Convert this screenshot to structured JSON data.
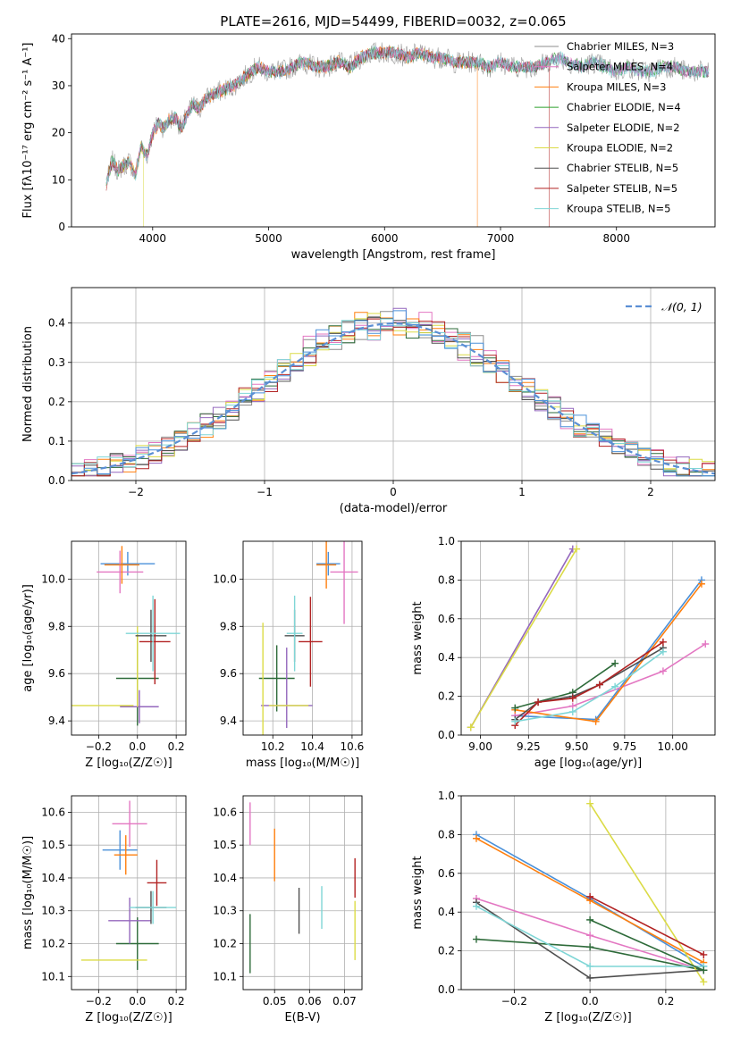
{
  "figure": {
    "title": "PLATE=2616, MJD=54499, FIBERID=0032, z=0.065"
  },
  "colors": {
    "Chabrier MILES": "#8c8c8c",
    "Salpeter MILES": "#e377c2",
    "Kroupa MILES": "#ff7f0e",
    "Chabrier ELODIE": "#2ca02c",
    "Salpeter ELODIE": "#9467bd",
    "Kroupa ELODIE": "#dbdb46",
    "Chabrier STELIB": "#4f4f4f",
    "Salpeter STELIB": "#b22222",
    "Kroupa STELIB": "#7fd6d6",
    "Chabrier MILES dark": "#4a90d9",
    "Chabrier ELODIE dark": "#2e6b3a",
    "gaussian": "#5b8fd4"
  },
  "chart_data": [
    {
      "id": "spectrum",
      "type": "line",
      "title": "PLATE=2616, MJD=54499, FIBERID=0032, z=0.065",
      "xlabel": "wavelength [Angstrom, rest frame]",
      "ylabel": "Flux [fλ10⁻¹⁷ erg cm⁻² s⁻¹ A⁻¹]",
      "xlim": [
        3300,
        8850
      ],
      "ylim": [
        0,
        41
      ],
      "xticks": [
        "4000",
        "5000",
        "6000",
        "7000",
        "8000"
      ],
      "yticks": [
        "0",
        "10",
        "20",
        "30",
        "40"
      ],
      "grid": false,
      "legend_position": "top-right",
      "legend": [
        "Chabrier MILES, N_SSP=3",
        "Salpeter MILES, N_SSP=4",
        "Kroupa MILES, N_SSP=3",
        "Chabrier ELODIE, N_SSP=4",
        "Salpeter ELODIE, N_SSP=2",
        "Kroupa ELODIE, N_SSP=2",
        "Chabrier STELIB, N_SSP=5",
        "Salpeter STELIB, N_SSP=5",
        "Kroupa STELIB, N_SSP=5"
      ],
      "legend_colors": [
        "#8c8c8c",
        "#e377c2",
        "#ff7f0e",
        "#2ca02c",
        "#9467bd",
        "#dbdb46",
        "#4f4f4f",
        "#b22222",
        "#7fd6d6"
      ],
      "envelope_x": [
        3600,
        3650,
        3700,
        3750,
        3800,
        3850,
        3900,
        3950,
        4000,
        4050,
        4100,
        4150,
        4200,
        4250,
        4300,
        4350,
        4400,
        4450,
        4500,
        4600,
        4700,
        4800,
        4900,
        5000,
        5100,
        5200,
        5300,
        5400,
        5500,
        5600,
        5700,
        5800,
        5900,
        6000,
        6100,
        6200,
        6300,
        6400,
        6500,
        6600,
        6700,
        6800,
        6900,
        7000,
        7100,
        7200,
        7300,
        7400,
        7500,
        7600,
        7700,
        7800,
        7900,
        8000,
        8100,
        8200,
        8300,
        8400,
        8500,
        8600,
        8700,
        8800
      ],
      "envelope_y": [
        9,
        14,
        12,
        13,
        14,
        11,
        17,
        15,
        20,
        22,
        21,
        23,
        23,
        21,
        24,
        26,
        25,
        27,
        28,
        29,
        30,
        32,
        34,
        33,
        33,
        34,
        35,
        34,
        34,
        35,
        34,
        36,
        37,
        37,
        37,
        36,
        37,
        36,
        36,
        35,
        35,
        35,
        34,
        35,
        34,
        34,
        34,
        35,
        36,
        35,
        34,
        35,
        34,
        33,
        34,
        33,
        33,
        34,
        34,
        33,
        33,
        33
      ],
      "drops": [
        {
          "series": "Kroupa ELODIE",
          "x": 3920
        },
        {
          "series": "Kroupa MILES",
          "x": 6800
        },
        {
          "series": "Salpeter STELIB",
          "x": 7420
        }
      ]
    },
    {
      "id": "residuals",
      "type": "histogram",
      "xlabel": "(data-model)/error",
      "ylabel": "Normed distribution",
      "xlim": [
        -2.5,
        2.5
      ],
      "ylim": [
        0,
        0.49
      ],
      "xticks": [
        "−2",
        "−1",
        "0",
        "1",
        "2"
      ],
      "yticks": [
        "0.0",
        "0.1",
        "0.2",
        "0.3",
        "0.4"
      ],
      "grid": true,
      "legend_position": "top-right",
      "legend": [
        "𝒩(0, 1)"
      ],
      "bin_width": 0.1,
      "gaussian_sigma": 1.0
    },
    {
      "id": "z-age",
      "type": "scatter",
      "xlabel": "Z [log₁₀(Z/Z☉)]",
      "ylabel": "age  [log₁₀(age/yr)]",
      "xlim": [
        -0.34,
        0.25
      ],
      "ylim": [
        9.34,
        10.16
      ],
      "xticks": [
        "−0.2",
        "0.0",
        "0.2"
      ],
      "yticks": [
        "9.4",
        "9.6",
        "9.8",
        "10.0"
      ],
      "grid": true,
      "points": [
        {
          "series": "Chabrier MILES dark",
          "x": -0.05,
          "y": 10.065,
          "xerr": 0.14,
          "yerr": 0.05
        },
        {
          "series": "Salpeter MILES",
          "x": -0.09,
          "y": 10.03,
          "xerr": 0.12,
          "yerr": 0.09
        },
        {
          "series": "Kroupa MILES",
          "x": -0.08,
          "y": 10.06,
          "xerr": 0.09,
          "yerr": 0.08
        },
        {
          "series": "Chabrier ELODIE dark",
          "x": 0.0,
          "y": 9.58,
          "xerr": 0.11,
          "yerr": 0.2
        },
        {
          "series": "Salpeter ELODIE",
          "x": 0.01,
          "y": 9.46,
          "xerr": 0.1,
          "yerr": 0.07
        },
        {
          "series": "Kroupa ELODIE",
          "x": -0.3,
          "y": 9.465,
          "xerr": 0.28,
          "yerr": 0.0
        },
        {
          "series": "Kroupa ELODIE",
          "x": 0.0,
          "y": 9.63,
          "xerr": 0.0,
          "yerr": 0.17
        },
        {
          "series": "Chabrier STELIB",
          "x": 0.07,
          "y": 9.76,
          "xerr": 0.08,
          "yerr": 0.11
        },
        {
          "series": "Salpeter STELIB",
          "x": 0.09,
          "y": 9.735,
          "xerr": 0.08,
          "yerr": 0.18
        },
        {
          "series": "Kroupa STELIB",
          "x": 0.08,
          "y": 9.77,
          "xerr": 0.14,
          "yerr": 0.16
        }
      ]
    },
    {
      "id": "mass-age",
      "type": "scatter",
      "xlabel": "mass [log₁₀(M/M☉)]",
      "ylabel": "",
      "xlim": [
        10.05,
        10.65
      ],
      "ylim": [
        9.34,
        10.16
      ],
      "xticks": [
        "10.2",
        "10.4",
        "10.6"
      ],
      "yticks": [
        "9.4",
        "9.6",
        "9.8",
        "10.0"
      ],
      "grid": true,
      "points": [
        {
          "series": "Chabrier MILES dark",
          "x": 10.48,
          "y": 10.065,
          "xerr": 0.06,
          "yerr": 0.05
        },
        {
          "series": "Salpeter MILES",
          "x": 10.56,
          "y": 10.03,
          "xerr": 0.07,
          "yerr": 0.22
        },
        {
          "series": "Kroupa MILES",
          "x": 10.47,
          "y": 10.06,
          "xerr": 0.05,
          "yerr": 0.1
        },
        {
          "series": "Chabrier ELODIE dark",
          "x": 10.22,
          "y": 9.58,
          "xerr": 0.09,
          "yerr": 0.14
        },
        {
          "series": "Salpeter ELODIE",
          "x": 10.27,
          "y": 9.465,
          "xerr": 0.13,
          "yerr": 0.0
        },
        {
          "series": "Salpeter ELODIE",
          "x": 10.27,
          "y": 9.54,
          "xerr": 0.0,
          "yerr": 0.17
        },
        {
          "series": "Kroupa ELODIE",
          "x": 10.15,
          "y": 9.465,
          "xerr": 0.0,
          "yerr": 0.35
        },
        {
          "series": "Kroupa ELODIE",
          "x": 10.28,
          "y": 9.465,
          "xerr": 0.1,
          "yerr": 0.0
        },
        {
          "series": "Chabrier STELIB",
          "x": 10.31,
          "y": 9.76,
          "xerr": 0.05,
          "yerr": 0.11
        },
        {
          "series": "Salpeter STELIB",
          "x": 10.39,
          "y": 9.735,
          "xerr": 0.06,
          "yerr": 0.19
        },
        {
          "series": "Kroupa STELIB",
          "x": 10.31,
          "y": 9.77,
          "xerr": 0.04,
          "yerr": 0.16
        }
      ]
    },
    {
      "id": "age-weight",
      "type": "line",
      "xlabel": "age  [log₁₀(age/yr)]",
      "ylabel": "mass weight",
      "xlim": [
        8.9,
        10.22
      ],
      "ylim": [
        0,
        1.0
      ],
      "xticks": [
        "9.00",
        "9.25",
        "9.50",
        "9.75",
        "10.00"
      ],
      "yticks": [
        "0.0",
        "0.2",
        "0.4",
        "0.6",
        "0.8",
        "1.0"
      ],
      "grid": true,
      "series": [
        {
          "name": "Chabrier MILES",
          "color": "#4a90d9",
          "x": [
            9.18,
            9.6,
            10.15
          ],
          "y": [
            0.1,
            0.08,
            0.8
          ]
        },
        {
          "name": "Salpeter MILES",
          "color": "#e377c2",
          "x": [
            9.18,
            9.48,
            9.95,
            10.17
          ],
          "y": [
            0.1,
            0.15,
            0.33,
            0.47
          ]
        },
        {
          "name": "Kroupa MILES",
          "color": "#ff7f0e",
          "x": [
            9.18,
            9.6,
            10.15
          ],
          "y": [
            0.13,
            0.07,
            0.78
          ]
        },
        {
          "name": "Chabrier ELODIE",
          "color": "#2e6b3a",
          "x": [
            9.18,
            9.48,
            9.7
          ],
          "y": [
            0.14,
            0.22,
            0.37
          ]
        },
        {
          "name": "Salpeter ELODIE",
          "color": "#9467bd",
          "x": [
            8.95,
            9.48
          ],
          "y": [
            0.04,
            0.96
          ]
        },
        {
          "name": "Kroupa ELODIE",
          "color": "#dbdb46",
          "x": [
            8.95,
            9.5
          ],
          "y": [
            0.04,
            0.96
          ]
        },
        {
          "name": "Chabrier STELIB",
          "color": "#4f4f4f",
          "x": [
            9.18,
            9.3,
            9.48,
            9.62,
            9.95
          ],
          "y": [
            0.08,
            0.17,
            0.2,
            0.26,
            0.45
          ]
        },
        {
          "name": "Salpeter STELIB",
          "color": "#b22222",
          "x": [
            9.18,
            9.3,
            9.48,
            9.62,
            9.95
          ],
          "y": [
            0.05,
            0.17,
            0.19,
            0.26,
            0.48
          ]
        },
        {
          "name": "Kroupa STELIB",
          "color": "#7fd6d6",
          "x": [
            9.18,
            9.48,
            9.7,
            9.95
          ],
          "y": [
            0.07,
            0.12,
            0.25,
            0.43
          ]
        }
      ]
    },
    {
      "id": "z-mass",
      "type": "scatter",
      "xlabel": "Z [log₁₀(Z/Z☉)]",
      "ylabel": "mass [log₁₀(M/M☉)]",
      "xlim": [
        -0.34,
        0.25
      ],
      "ylim": [
        10.06,
        10.65
      ],
      "xticks": [
        "−0.2",
        "0.0",
        "0.2"
      ],
      "yticks": [
        "10.1",
        "10.2",
        "10.3",
        "10.4",
        "10.5",
        "10.6"
      ],
      "grid": true,
      "points": [
        {
          "series": "Chabrier MILES dark",
          "x": -0.09,
          "y": 10.485,
          "xerr": 0.09,
          "yerr": 0.06
        },
        {
          "series": "Salpeter MILES",
          "x": -0.04,
          "y": 10.565,
          "xerr": 0.09,
          "yerr": 0.07
        },
        {
          "series": "Kroupa MILES",
          "x": -0.06,
          "y": 10.47,
          "xerr": 0.06,
          "yerr": 0.06
        },
        {
          "series": "Chabrier ELODIE dark",
          "x": 0.0,
          "y": 10.2,
          "xerr": 0.11,
          "yerr": 0.08
        },
        {
          "series": "Salpeter ELODIE",
          "x": -0.04,
          "y": 10.27,
          "xerr": 0.11,
          "yerr": 0.07
        },
        {
          "series": "Kroupa ELODIE",
          "x": -0.12,
          "y": 10.15,
          "xerr": 0.17,
          "yerr": 0.0
        },
        {
          "series": "Chabrier STELIB",
          "x": 0.07,
          "y": 10.31,
          "xerr": 0.08,
          "yerr": 0.05
        },
        {
          "series": "Salpeter STELIB",
          "x": 0.1,
          "y": 10.385,
          "xerr": 0.05,
          "yerr": 0.07
        },
        {
          "series": "Kroupa STELIB",
          "x": 0.08,
          "y": 10.31,
          "xerr": 0.12,
          "yerr": 0.05
        }
      ]
    },
    {
      "id": "ebv-mass",
      "type": "scatter",
      "xlabel": "E(B-V)",
      "ylabel": "",
      "xlim": [
        0.041,
        0.075
      ],
      "ylim": [
        10.06,
        10.65
      ],
      "xticks": [
        "0.05",
        "0.06",
        "0.07"
      ],
      "yticks": [
        "10.1",
        "10.2",
        "10.3",
        "10.4",
        "10.5",
        "10.6"
      ],
      "grid": true,
      "points": [
        {
          "series": "Chabrier ELODIE dark",
          "x": 0.043,
          "y": 10.2,
          "xerr": 0,
          "yerr": 0.09
        },
        {
          "series": "Salpeter MILES",
          "x": 0.043,
          "y": 10.565,
          "xerr": 0,
          "yerr": 0.065
        },
        {
          "series": "Kroupa MILES",
          "x": 0.05,
          "y": 10.47,
          "xerr": 0,
          "yerr": 0.08
        },
        {
          "series": "Chabrier STELIB",
          "x": 0.057,
          "y": 10.3,
          "xerr": 0,
          "yerr": 0.07
        },
        {
          "series": "Kroupa STELIB",
          "x": 0.0635,
          "y": 10.31,
          "xerr": 0,
          "yerr": 0.065
        },
        {
          "series": "Salpeter STELIB",
          "x": 0.073,
          "y": 10.4,
          "xerr": 0,
          "yerr": 0.06
        },
        {
          "series": "Kroupa ELODIE",
          "x": 0.073,
          "y": 10.24,
          "xerr": 0,
          "yerr": 0.09
        }
      ]
    },
    {
      "id": "z-weight",
      "type": "line",
      "xlabel": "Z [log₁₀(Z/Z☉)]",
      "ylabel": "mass weight",
      "xlim": [
        -0.34,
        0.33
      ],
      "ylim": [
        0,
        1.0
      ],
      "xticks": [
        "−0.2",
        "0.0",
        "0.2"
      ],
      "yticks": [
        "0.0",
        "0.2",
        "0.4",
        "0.6",
        "0.8",
        "1.0"
      ],
      "grid": true,
      "series": [
        {
          "name": "Chabrier MILES",
          "color": "#4a90d9",
          "x": [
            -0.3,
            0.0,
            0.3
          ],
          "y": [
            0.8,
            0.47,
            0.12
          ]
        },
        {
          "name": "Salpeter MILES",
          "color": "#e377c2",
          "x": [
            -0.3,
            0.0,
            0.3
          ],
          "y": [
            0.47,
            0.28,
            0.1
          ]
        },
        {
          "name": "Kroupa MILES",
          "color": "#ff7f0e",
          "x": [
            -0.3,
            0.0,
            0.3
          ],
          "y": [
            0.78,
            0.46,
            0.14
          ]
        },
        {
          "name": "Chabrier ELODIE",
          "color": "#2e6b3a",
          "x": [
            -0.3,
            0.0,
            0.3
          ],
          "y": [
            0.26,
            0.22,
            0.1
          ]
        },
        {
          "name": "Kroupa ELODIE",
          "color": "#dbdb46",
          "x": [
            0.0,
            0.3
          ],
          "y": [
            0.96,
            0.04
          ]
        },
        {
          "name": "Chabrier STELIB",
          "color": "#4f4f4f",
          "x": [
            -0.3,
            0.0,
            0.3
          ],
          "y": [
            0.45,
            0.06,
            0.1
          ]
        },
        {
          "name": "Salpeter STELIB",
          "color": "#b22222",
          "x": [
            0.0,
            0.3
          ],
          "y": [
            0.48,
            0.18
          ]
        },
        {
          "name": "Kroupa STELIB",
          "color": "#7fd6d6",
          "x": [
            -0.3,
            0.0,
            0.3
          ],
          "y": [
            0.43,
            0.12,
            0.12
          ]
        },
        {
          "name": "Chabrier ELODIE b",
          "color": "#2e6b3a",
          "x": [
            0.0,
            0.3
          ],
          "y": [
            0.36,
            0.1
          ]
        }
      ]
    }
  ]
}
